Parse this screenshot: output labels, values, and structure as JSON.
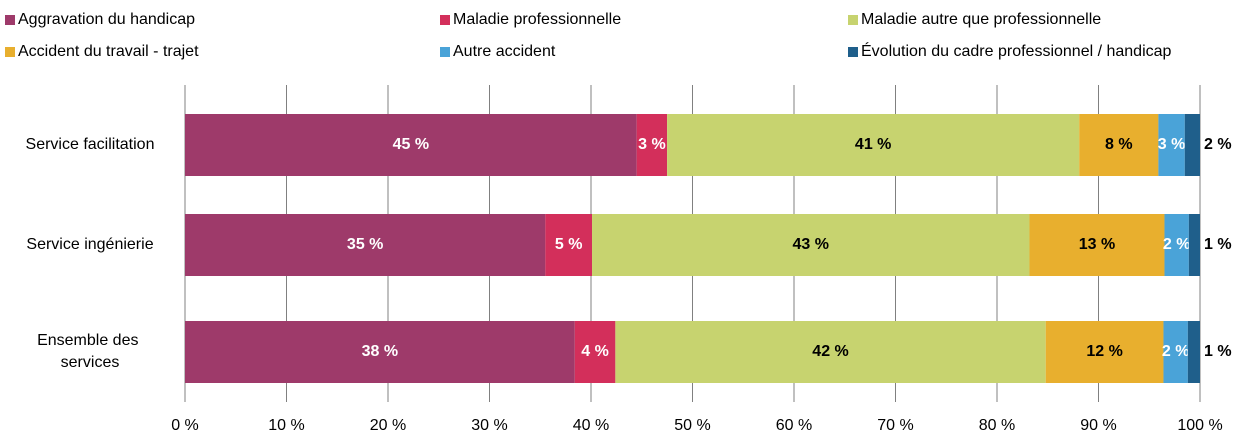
{
  "chart_data": {
    "type": "stacked-barh",
    "categories": [
      "Service facilitation",
      "Service ingénierie",
      "Ensemble des services"
    ],
    "series": [
      {
        "name": "Aggravation du handicap",
        "color": "#9e3a6a",
        "label_color": "#ffffff",
        "values": [
          44.5,
          35.5,
          38.4
        ],
        "value_labels": [
          "45 %",
          "35 %",
          "38 %"
        ]
      },
      {
        "name": "Maladie professionnelle",
        "color": "#d32f5b",
        "label_color": "#ffffff",
        "values": [
          3.0,
          4.6,
          4.0
        ],
        "value_labels": [
          "3 %",
          "5 %",
          "4 %"
        ]
      },
      {
        "name": "Maladie autre que professionnelle",
        "color": "#c7d36f",
        "label_color": "#000000",
        "values": [
          40.6,
          43.1,
          42.4
        ],
        "value_labels": [
          "41 %",
          "43 %",
          "42 %"
        ]
      },
      {
        "name": "Accident du travail - trajet",
        "color": "#e8af2e",
        "label_color": "#000000",
        "values": [
          7.8,
          13.3,
          11.6
        ],
        "value_labels": [
          "8 %",
          "13 %",
          "12 %"
        ]
      },
      {
        "name": "Autre accident",
        "color": "#4aa3d8",
        "label_color": "#ffffff",
        "values": [
          2.6,
          2.4,
          2.4
        ],
        "value_labels": [
          "3 %",
          "2 %",
          "2 %"
        ]
      },
      {
        "name": "Évolution du cadre professionnel / handicap",
        "color": "#1f5f8b",
        "label_color": "#000000",
        "label_outside": true,
        "values": [
          1.5,
          1.1,
          1.2
        ],
        "value_labels": [
          "2 %",
          "1 %",
          "1 %"
        ]
      }
    ],
    "xlim": [
      0,
      100
    ],
    "xticks": [
      {
        "value": 0,
        "label": "0 %"
      },
      {
        "value": 10,
        "label": "10 %"
      },
      {
        "value": 20,
        "label": "20 %"
      },
      {
        "value": 30,
        "label": "30 %"
      },
      {
        "value": 40,
        "label": "40 %"
      },
      {
        "value": 50,
        "label": "50 %"
      },
      {
        "value": 60,
        "label": "60 %"
      },
      {
        "value": 70,
        "label": "70 %"
      },
      {
        "value": 80,
        "label": "80 %"
      },
      {
        "value": 90,
        "label": "90 %"
      },
      {
        "value": 100,
        "label": "100 %"
      }
    ],
    "grid": true,
    "legend": "top"
  }
}
